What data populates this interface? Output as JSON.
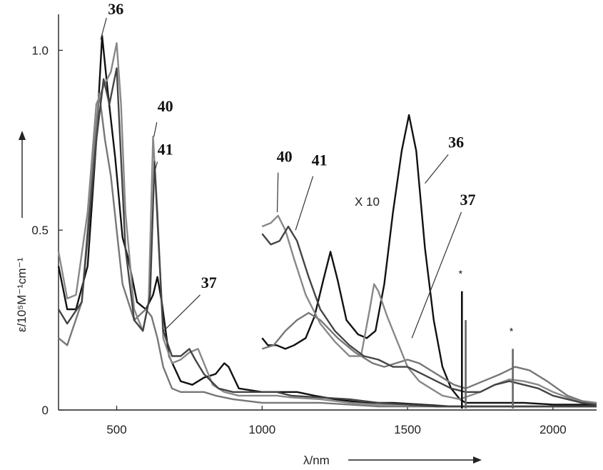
{
  "chart_data": {
    "type": "line",
    "xlabel": "λ/nm",
    "ylabel": "ε/10⁵M⁻¹cm⁻¹",
    "xlim": [
      300,
      2150
    ],
    "ylim": [
      0,
      1.1
    ],
    "x_ticks": [
      500,
      1000,
      1500,
      2000
    ],
    "y_ticks": [
      0,
      0.5,
      1.0
    ],
    "y_tick_labels": [
      "0",
      "0.5",
      "1.0"
    ],
    "grid": false,
    "annotation": "X 10",
    "marker": "*",
    "series": [
      {
        "name": "36",
        "color": "#111111",
        "scale_note": "",
        "points": [
          [
            300,
            0.4
          ],
          [
            330,
            0.28
          ],
          [
            360,
            0.28
          ],
          [
            400,
            0.4
          ],
          [
            430,
            0.75
          ],
          [
            450,
            1.04
          ],
          [
            470,
            0.88
          ],
          [
            495,
            0.7
          ],
          [
            520,
            0.48
          ],
          [
            540,
            0.42
          ],
          [
            570,
            0.3
          ],
          [
            600,
            0.28
          ],
          [
            625,
            0.32
          ],
          [
            640,
            0.37
          ],
          [
            655,
            0.3
          ],
          [
            680,
            0.15
          ],
          [
            720,
            0.08
          ],
          [
            760,
            0.07
          ],
          [
            800,
            0.09
          ],
          [
            840,
            0.1
          ],
          [
            870,
            0.13
          ],
          [
            885,
            0.12
          ],
          [
            920,
            0.06
          ],
          [
            1000,
            0.05
          ],
          [
            1080,
            0.05
          ],
          [
            1120,
            0.05
          ],
          [
            1180,
            0.04
          ],
          [
            1250,
            0.03
          ],
          [
            1350,
            0.02
          ],
          [
            1450,
            0.02
          ],
          [
            1550,
            0.015
          ],
          [
            1650,
            0.01
          ],
          [
            1700,
            0.01
          ],
          [
            1800,
            0.01
          ],
          [
            1900,
            0.01
          ],
          [
            2000,
            0.01
          ],
          [
            2150,
            0.01
          ]
        ]
      },
      {
        "name": "37",
        "color": "#777777",
        "scale_note": "",
        "points": [
          [
            300,
            0.2
          ],
          [
            330,
            0.18
          ],
          [
            380,
            0.3
          ],
          [
            420,
            0.7
          ],
          [
            440,
            0.88
          ],
          [
            460,
            0.75
          ],
          [
            480,
            0.65
          ],
          [
            500,
            0.5
          ],
          [
            520,
            0.35
          ],
          [
            560,
            0.25
          ],
          [
            600,
            0.28
          ],
          [
            620,
            0.26
          ],
          [
            640,
            0.2
          ],
          [
            660,
            0.12
          ],
          [
            690,
            0.06
          ],
          [
            720,
            0.05
          ],
          [
            760,
            0.05
          ],
          [
            800,
            0.05
          ],
          [
            840,
            0.04
          ],
          [
            900,
            0.03
          ],
          [
            1000,
            0.02
          ],
          [
            1100,
            0.02
          ],
          [
            1200,
            0.02
          ],
          [
            1300,
            0.015
          ],
          [
            1400,
            0.01
          ],
          [
            1500,
            0.01
          ],
          [
            1600,
            0.01
          ],
          [
            1700,
            0.01
          ],
          [
            1800,
            0.01
          ],
          [
            1900,
            0.01
          ],
          [
            2000,
            0.01
          ],
          [
            2150,
            0.01
          ]
        ]
      },
      {
        "name": "40",
        "color": "#888888",
        "scale_note": "",
        "points": [
          [
            300,
            0.44
          ],
          [
            330,
            0.31
          ],
          [
            360,
            0.32
          ],
          [
            400,
            0.55
          ],
          [
            430,
            0.85
          ],
          [
            455,
            0.9
          ],
          [
            480,
            0.94
          ],
          [
            500,
            1.02
          ],
          [
            515,
            0.85
          ],
          [
            530,
            0.55
          ],
          [
            560,
            0.28
          ],
          [
            590,
            0.22
          ],
          [
            610,
            0.3
          ],
          [
            625,
            0.76
          ],
          [
            640,
            0.55
          ],
          [
            660,
            0.2
          ],
          [
            690,
            0.13
          ],
          [
            720,
            0.14
          ],
          [
            750,
            0.16
          ],
          [
            780,
            0.17
          ],
          [
            800,
            0.13
          ],
          [
            830,
            0.07
          ],
          [
            870,
            0.05
          ],
          [
            920,
            0.04
          ],
          [
            1000,
            0.04
          ],
          [
            1050,
            0.04
          ],
          [
            1100,
            0.035
          ],
          [
            1200,
            0.03
          ],
          [
            1300,
            0.02
          ],
          [
            1400,
            0.015
          ],
          [
            1500,
            0.015
          ],
          [
            1600,
            0.01
          ],
          [
            1700,
            0.01
          ],
          [
            1800,
            0.01
          ],
          [
            1900,
            0.01
          ],
          [
            2000,
            0.01
          ],
          [
            2150,
            0.01
          ]
        ]
      },
      {
        "name": "41",
        "color": "#444444",
        "scale_note": "",
        "points": [
          [
            300,
            0.28
          ],
          [
            330,
            0.24
          ],
          [
            380,
            0.3
          ],
          [
            430,
            0.75
          ],
          [
            455,
            0.92
          ],
          [
            475,
            0.85
          ],
          [
            500,
            0.95
          ],
          [
            515,
            0.7
          ],
          [
            530,
            0.45
          ],
          [
            560,
            0.25
          ],
          [
            590,
            0.22
          ],
          [
            615,
            0.32
          ],
          [
            630,
            0.69
          ],
          [
            645,
            0.45
          ],
          [
            660,
            0.22
          ],
          [
            690,
            0.15
          ],
          [
            720,
            0.15
          ],
          [
            750,
            0.17
          ],
          [
            770,
            0.14
          ],
          [
            800,
            0.1
          ],
          [
            850,
            0.06
          ],
          [
            900,
            0.05
          ],
          [
            1000,
            0.05
          ],
          [
            1050,
            0.05
          ],
          [
            1100,
            0.04
          ],
          [
            1200,
            0.035
          ],
          [
            1300,
            0.03
          ],
          [
            1400,
            0.02
          ],
          [
            1500,
            0.015
          ],
          [
            1600,
            0.01
          ],
          [
            1700,
            0.01
          ],
          [
            1800,
            0.01
          ],
          [
            1900,
            0.01
          ],
          [
            2000,
            0.01
          ],
          [
            2150,
            0.01
          ]
        ]
      },
      {
        "name": "36",
        "color": "#111111",
        "scale_note": "X 10",
        "points": [
          [
            1000,
            0.2
          ],
          [
            1020,
            0.18
          ],
          [
            1050,
            0.18
          ],
          [
            1080,
            0.17
          ],
          [
            1110,
            0.18
          ],
          [
            1150,
            0.2
          ],
          [
            1180,
            0.26
          ],
          [
            1210,
            0.36
          ],
          [
            1235,
            0.44
          ],
          [
            1260,
            0.36
          ],
          [
            1290,
            0.25
          ],
          [
            1330,
            0.21
          ],
          [
            1360,
            0.2
          ],
          [
            1390,
            0.22
          ],
          [
            1420,
            0.35
          ],
          [
            1450,
            0.55
          ],
          [
            1480,
            0.72
          ],
          [
            1505,
            0.82
          ],
          [
            1530,
            0.72
          ],
          [
            1560,
            0.45
          ],
          [
            1590,
            0.25
          ],
          [
            1620,
            0.12
          ],
          [
            1650,
            0.06
          ],
          [
            1680,
            0.03
          ],
          [
            1700,
            0.02
          ],
          [
            1750,
            0.02
          ],
          [
            1800,
            0.02
          ],
          [
            1900,
            0.02
          ],
          [
            2000,
            0.015
          ],
          [
            2100,
            0.015
          ],
          [
            2150,
            0.015
          ]
        ]
      },
      {
        "name": "37",
        "color": "#777777",
        "scale_note": "X 10",
        "points": [
          [
            1000,
            0.17
          ],
          [
            1040,
            0.18
          ],
          [
            1080,
            0.22
          ],
          [
            1120,
            0.25
          ],
          [
            1160,
            0.27
          ],
          [
            1200,
            0.25
          ],
          [
            1260,
            0.2
          ],
          [
            1320,
            0.16
          ],
          [
            1380,
            0.13
          ],
          [
            1420,
            0.12
          ],
          [
            1460,
            0.13
          ],
          [
            1500,
            0.14
          ],
          [
            1540,
            0.13
          ],
          [
            1580,
            0.11
          ],
          [
            1620,
            0.09
          ],
          [
            1660,
            0.07
          ],
          [
            1700,
            0.06
          ],
          [
            1760,
            0.08
          ],
          [
            1820,
            0.1
          ],
          [
            1870,
            0.12
          ],
          [
            1920,
            0.11
          ],
          [
            1980,
            0.08
          ],
          [
            2050,
            0.04
          ],
          [
            2100,
            0.025
          ],
          [
            2150,
            0.02
          ]
        ]
      },
      {
        "name": "40",
        "color": "#888888",
        "scale_note": "X 10",
        "points": [
          [
            1000,
            0.51
          ],
          [
            1030,
            0.52
          ],
          [
            1055,
            0.54
          ],
          [
            1080,
            0.5
          ],
          [
            1110,
            0.42
          ],
          [
            1150,
            0.32
          ],
          [
            1200,
            0.24
          ],
          [
            1250,
            0.19
          ],
          [
            1300,
            0.15
          ],
          [
            1340,
            0.15
          ],
          [
            1370,
            0.28
          ],
          [
            1385,
            0.35
          ],
          [
            1400,
            0.33
          ],
          [
            1430,
            0.26
          ],
          [
            1460,
            0.2
          ],
          [
            1500,
            0.12
          ],
          [
            1540,
            0.08
          ],
          [
            1580,
            0.06
          ],
          [
            1620,
            0.04
          ],
          [
            1680,
            0.03
          ],
          [
            1750,
            0.05
          ],
          [
            1800,
            0.07
          ],
          [
            1850,
            0.085
          ],
          [
            1900,
            0.08
          ],
          [
            1950,
            0.07
          ],
          [
            2000,
            0.05
          ],
          [
            2100,
            0.02
          ],
          [
            2150,
            0.02
          ]
        ]
      },
      {
        "name": "41",
        "color": "#444444",
        "scale_note": "X 10",
        "points": [
          [
            1000,
            0.49
          ],
          [
            1030,
            0.46
          ],
          [
            1060,
            0.47
          ],
          [
            1090,
            0.51
          ],
          [
            1120,
            0.47
          ],
          [
            1160,
            0.37
          ],
          [
            1200,
            0.28
          ],
          [
            1250,
            0.22
          ],
          [
            1300,
            0.18
          ],
          [
            1350,
            0.15
          ],
          [
            1400,
            0.14
          ],
          [
            1450,
            0.12
          ],
          [
            1500,
            0.12
          ],
          [
            1550,
            0.1
          ],
          [
            1600,
            0.08
          ],
          [
            1650,
            0.06
          ],
          [
            1700,
            0.05
          ],
          [
            1750,
            0.05
          ],
          [
            1800,
            0.07
          ],
          [
            1850,
            0.08
          ],
          [
            1900,
            0.07
          ],
          [
            1950,
            0.06
          ],
          [
            2000,
            0.04
          ],
          [
            2100,
            0.02
          ],
          [
            2150,
            0.015
          ]
        ]
      }
    ],
    "spikes": [
      {
        "x": 1687,
        "y": 0.33,
        "color": "#111111",
        "label": "*"
      },
      {
        "x": 1700,
        "y": 0.25,
        "color": "#666666",
        "label": ""
      },
      {
        "x": 1862,
        "y": 0.17,
        "color": "#666666",
        "label": "*"
      }
    ],
    "series_labels": [
      {
        "text": "36",
        "x": 470,
        "y": 1.1
      },
      {
        "text": "40",
        "x": 640,
        "y": 0.83
      },
      {
        "text": "41",
        "x": 640,
        "y": 0.71
      },
      {
        "text": "37",
        "x": 790,
        "y": 0.34
      },
      {
        "text": "40",
        "x": 1050,
        "y": 0.69
      },
      {
        "text": "41",
        "x": 1170,
        "y": 0.68
      },
      {
        "text": "36",
        "x": 1640,
        "y": 0.73
      },
      {
        "text": "37",
        "x": 1680,
        "y": 0.57
      }
    ]
  }
}
